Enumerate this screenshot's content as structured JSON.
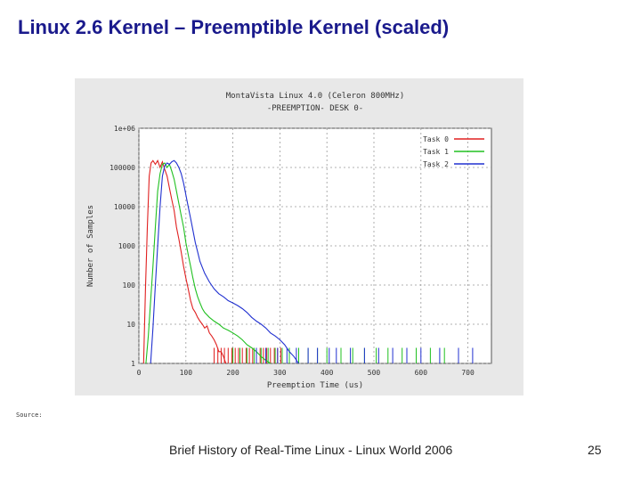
{
  "slide": {
    "title": "Linux 2.6 Kernel – Preemptible Kernel (scaled)",
    "source_label": "Source:",
    "footer": "Brief History of Real-Time Linux - Linux World 2006",
    "page_number": "25"
  },
  "chart_data": {
    "type": "line",
    "title": "MontaVista Linux 4.0 (Celeron 800MHz)",
    "subtitle": "-PREEMPTION- DESK 0-",
    "xlabel": "Preemption Time (us)",
    "ylabel": "Number of Samples",
    "xlim": [
      0,
      750
    ],
    "ylim_log10": [
      0,
      6
    ],
    "y_scale": "log",
    "x_ticks": [
      0,
      100,
      200,
      300,
      400,
      500,
      600,
      700
    ],
    "x_tick_labels": [
      "0",
      "100",
      "200",
      "300",
      "400",
      "500",
      "600",
      "700"
    ],
    "y_ticks": [
      1,
      10,
      100,
      1000,
      10000,
      100000,
      1000000
    ],
    "y_tick_labels": [
      "1",
      "10",
      "100",
      "1000",
      "10000",
      "100000",
      "1e+06"
    ],
    "grid": true,
    "legend_position": "top-right",
    "series": [
      {
        "name": "Task 0",
        "color": "#e02020",
        "points": [
          [
            10,
            1
          ],
          [
            14,
            80
          ],
          [
            18,
            3000
          ],
          [
            22,
            60000
          ],
          [
            26,
            130000
          ],
          [
            30,
            150000
          ],
          [
            35,
            120000
          ],
          [
            40,
            150000
          ],
          [
            45,
            100000
          ],
          [
            50,
            140000
          ],
          [
            55,
            90000
          ],
          [
            60,
            60000
          ],
          [
            65,
            30000
          ],
          [
            70,
            15000
          ],
          [
            75,
            8000
          ],
          [
            80,
            3000
          ],
          [
            85,
            1500
          ],
          [
            90,
            700
          ],
          [
            95,
            300
          ],
          [
            100,
            150
          ],
          [
            105,
            80
          ],
          [
            110,
            40
          ],
          [
            115,
            25
          ],
          [
            120,
            20
          ],
          [
            125,
            15
          ],
          [
            130,
            12
          ],
          [
            135,
            10
          ],
          [
            140,
            8
          ],
          [
            145,
            9
          ],
          [
            150,
            6
          ],
          [
            155,
            5
          ],
          [
            160,
            4
          ],
          [
            165,
            3
          ],
          [
            170,
            2
          ],
          [
            175,
            2
          ],
          [
            180,
            1.5
          ],
          [
            185,
            1
          ]
        ],
        "spikes": [
          160,
          168,
          175,
          182,
          190,
          198,
          205,
          212,
          220,
          228,
          235,
          242,
          250,
          258,
          265,
          272,
          280,
          288,
          295,
          302
        ]
      },
      {
        "name": "Task 1",
        "color": "#20c020",
        "points": [
          [
            15,
            1
          ],
          [
            20,
            5
          ],
          [
            25,
            40
          ],
          [
            30,
            300
          ],
          [
            35,
            3000
          ],
          [
            40,
            25000
          ],
          [
            45,
            70000
          ],
          [
            50,
            120000
          ],
          [
            55,
            130000
          ],
          [
            60,
            100000
          ],
          [
            65,
            120000
          ],
          [
            70,
            80000
          ],
          [
            75,
            50000
          ],
          [
            80,
            25000
          ],
          [
            85,
            12000
          ],
          [
            90,
            6000
          ],
          [
            95,
            3000
          ],
          [
            100,
            1200
          ],
          [
            105,
            600
          ],
          [
            110,
            300
          ],
          [
            115,
            150
          ],
          [
            120,
            80
          ],
          [
            125,
            50
          ],
          [
            130,
            35
          ],
          [
            135,
            25
          ],
          [
            140,
            20
          ],
          [
            150,
            15
          ],
          [
            160,
            12
          ],
          [
            170,
            10
          ],
          [
            180,
            8
          ],
          [
            190,
            7
          ],
          [
            200,
            6
          ],
          [
            210,
            5
          ],
          [
            220,
            4
          ],
          [
            230,
            3
          ],
          [
            240,
            2.5
          ],
          [
            250,
            2
          ],
          [
            260,
            1.5
          ],
          [
            270,
            1.2
          ],
          [
            280,
            1
          ]
        ],
        "spikes": [
          200,
          215,
          230,
          245,
          260,
          275,
          290,
          305,
          320,
          340,
          360,
          380,
          400,
          430,
          455,
          480,
          505,
          530,
          560,
          590,
          620,
          650
        ]
      },
      {
        "name": "Task 2",
        "color": "#2030d0",
        "points": [
          [
            25,
            1
          ],
          [
            30,
            8
          ],
          [
            35,
            100
          ],
          [
            40,
            1000
          ],
          [
            45,
            10000
          ],
          [
            50,
            60000
          ],
          [
            55,
            110000
          ],
          [
            60,
            130000
          ],
          [
            65,
            120000
          ],
          [
            70,
            140000
          ],
          [
            75,
            150000
          ],
          [
            80,
            130000
          ],
          [
            85,
            100000
          ],
          [
            90,
            70000
          ],
          [
            95,
            40000
          ],
          [
            100,
            20000
          ],
          [
            105,
            10000
          ],
          [
            110,
            5000
          ],
          [
            115,
            2500
          ],
          [
            120,
            1200
          ],
          [
            125,
            700
          ],
          [
            130,
            400
          ],
          [
            140,
            200
          ],
          [
            150,
            120
          ],
          [
            160,
            80
          ],
          [
            170,
            60
          ],
          [
            180,
            50
          ],
          [
            190,
            40
          ],
          [
            200,
            35
          ],
          [
            210,
            30
          ],
          [
            220,
            25
          ],
          [
            230,
            20
          ],
          [
            240,
            15
          ],
          [
            250,
            12
          ],
          [
            260,
            10
          ],
          [
            270,
            8
          ],
          [
            280,
            6
          ],
          [
            290,
            5
          ],
          [
            300,
            4
          ],
          [
            310,
            3
          ],
          [
            320,
            2
          ],
          [
            330,
            1.5
          ],
          [
            340,
            1
          ]
        ],
        "spikes": [
          250,
          270,
          295,
          315,
          335,
          360,
          380,
          405,
          420,
          450,
          480,
          510,
          540,
          570,
          600,
          640,
          680,
          710
        ]
      }
    ]
  }
}
